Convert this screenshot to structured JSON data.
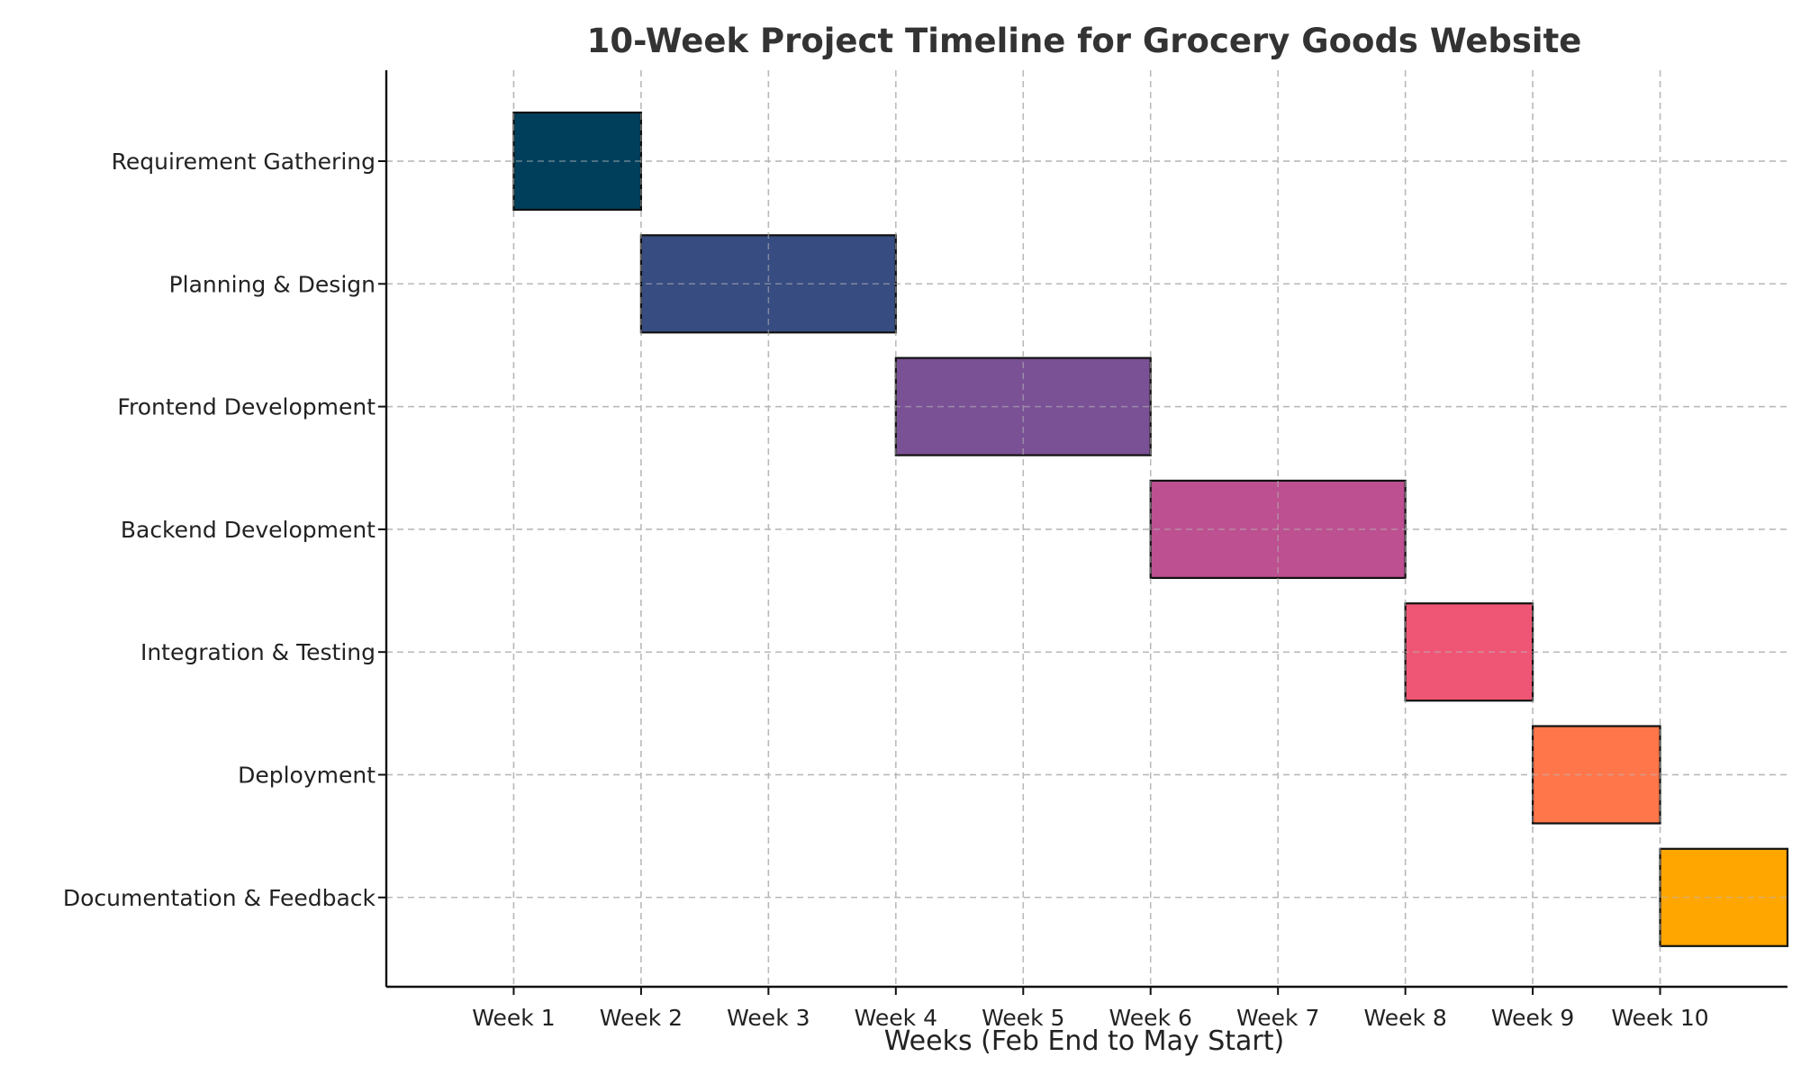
{
  "chart_data": {
    "type": "gantt",
    "title": "10-Week Project Timeline for Grocery Goods Website",
    "xlabel": "Weeks (Feb End to May Start)",
    "ylabel": "",
    "x_ticks": [
      "Week 1",
      "Week 2",
      "Week 3",
      "Week 4",
      "Week 5",
      "Week 6",
      "Week 7",
      "Week 8",
      "Week 9",
      "Week 10"
    ],
    "xlim": [
      0,
      11
    ],
    "grid": true,
    "legend": "none",
    "tasks": [
      {
        "name": "Requirement Gathering",
        "start": 1,
        "end": 2,
        "color": "#003F5C"
      },
      {
        "name": "Planning & Design",
        "start": 2,
        "end": 4,
        "color": "#374C80"
      },
      {
        "name": "Frontend Development",
        "start": 4,
        "end": 6,
        "color": "#7A5195"
      },
      {
        "name": "Backend Development",
        "start": 6,
        "end": 8,
        "color": "#BC5090"
      },
      {
        "name": "Integration & Testing",
        "start": 8,
        "end": 9,
        "color": "#EF5675"
      },
      {
        "name": "Deployment",
        "start": 9,
        "end": 10,
        "color": "#FF764A"
      },
      {
        "name": "Documentation & Feedback",
        "start": 10,
        "end": 11,
        "color": "#FFA600"
      }
    ]
  }
}
